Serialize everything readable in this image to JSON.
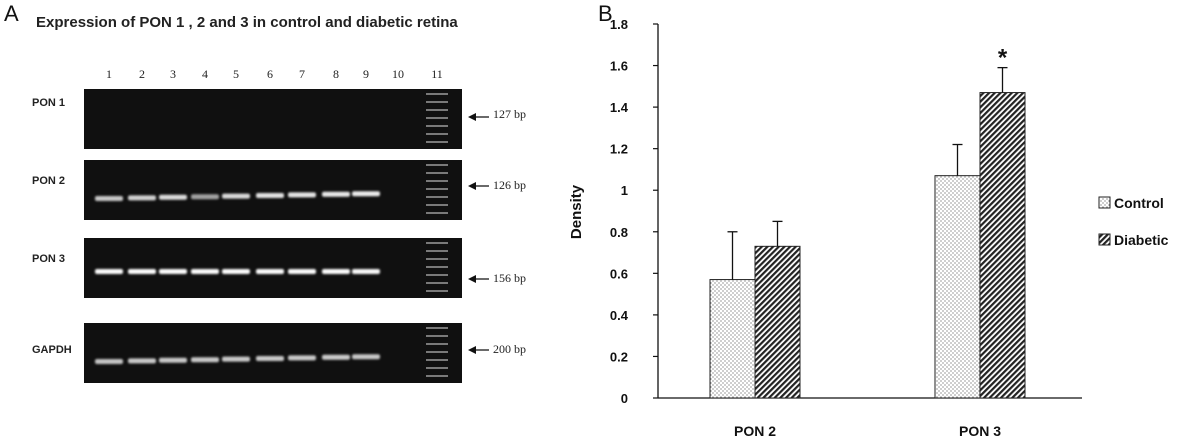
{
  "panel_a": {
    "letter": "A",
    "title": "Expression of PON 1 , 2 and 3 in control and diabetic retina",
    "lanes": [
      "1",
      "2",
      "3",
      "4",
      "5",
      "6",
      "7",
      "8",
      "9",
      "10",
      "11"
    ],
    "rows": [
      {
        "label": "PON 1",
        "bp": "127 bp",
        "band_intensity": [
          0,
          0,
          0,
          0,
          0,
          0,
          0,
          0,
          0,
          0
        ]
      },
      {
        "label": "PON 2",
        "bp": "126 bp",
        "band_intensity": [
          0.62,
          0.68,
          0.75,
          0.35,
          0.74,
          0.8,
          0.82,
          0.85,
          0.87,
          0
        ]
      },
      {
        "label": "PON 3",
        "bp": "156 bp",
        "band_intensity": [
          0.97,
          0.98,
          0.98,
          0.97,
          0.98,
          0.97,
          0.97,
          0.98,
          0.95,
          0
        ]
      },
      {
        "label": "GAPDH",
        "bp": "200 bp",
        "band_intensity": [
          0.6,
          0.62,
          0.62,
          0.62,
          0.63,
          0.63,
          0.63,
          0.64,
          0.62,
          0
        ]
      }
    ]
  },
  "panel_b": {
    "letter": "B"
  },
  "chart_data": {
    "type": "bar",
    "title": "",
    "xlabel": "",
    "ylabel": "Density",
    "ylim": [
      0,
      1.8
    ],
    "yticks": [
      "0",
      "0.2",
      "0.4",
      "0.6",
      "0.8",
      "1",
      "1.2",
      "1.4",
      "1.6",
      "1.8"
    ],
    "categories": [
      "PON 2",
      "PON 3"
    ],
    "series": [
      {
        "name": "Control",
        "values": [
          0.57,
          1.07
        ],
        "errors": [
          0.23,
          0.15
        ],
        "pattern": "dots"
      },
      {
        "name": "Diabetic",
        "values": [
          0.73,
          1.47
        ],
        "errors": [
          0.12,
          0.12
        ],
        "pattern": "diagonal-hatch"
      }
    ],
    "annotations": [
      {
        "text": "*",
        "category": "PON 3",
        "series": "Diabetic"
      }
    ],
    "legend_position": "right",
    "grid": false
  }
}
